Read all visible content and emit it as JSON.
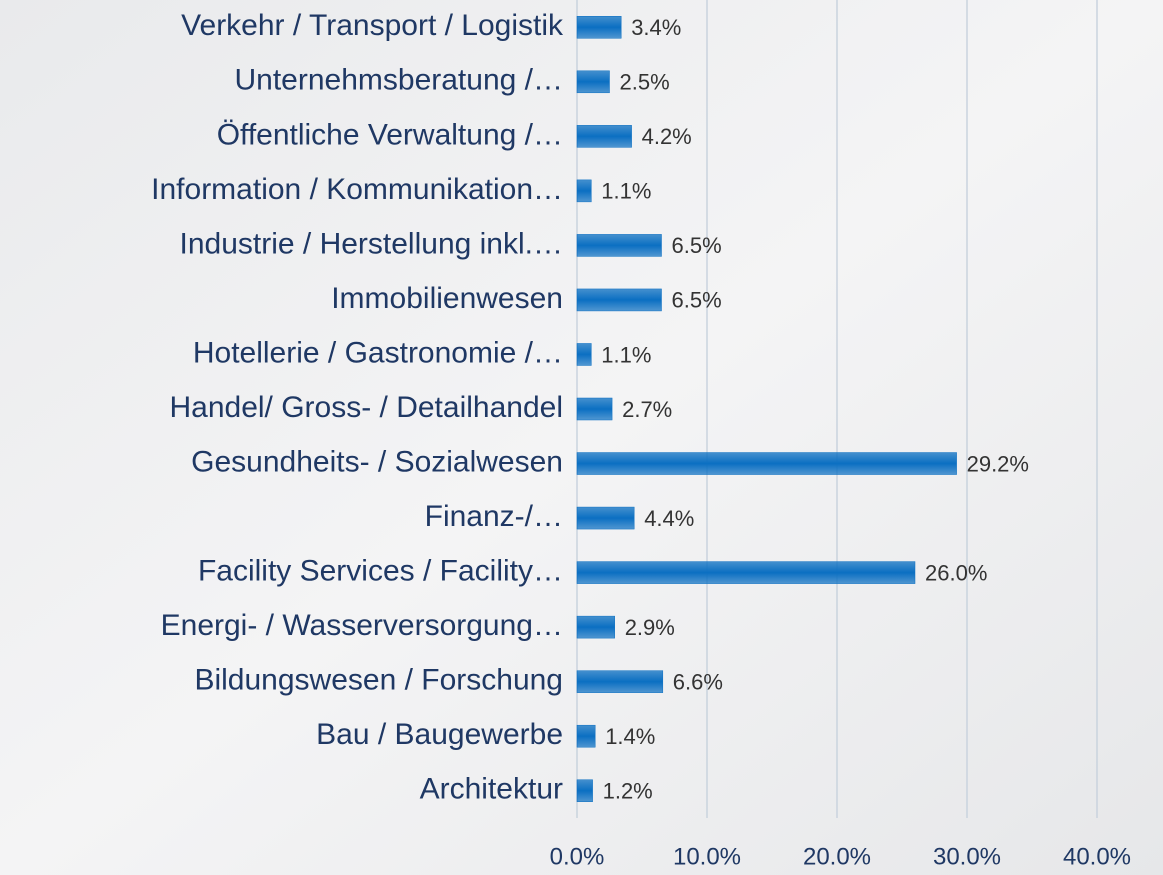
{
  "chart_data": {
    "type": "bar",
    "orientation": "horizontal",
    "categories": [
      "Verkehr / Transport / Logistik",
      "Unternehmsberatung /…",
      "Öffentliche Verwaltung /…",
      "Information / Kommunikation…",
      "Industrie / Herstellung inkl.…",
      "Immobilienwesen",
      "Hotellerie / Gastronomie /…",
      "Handel/ Gross- / Detailhandel",
      "Gesundheits- / Sozialwesen",
      "Finanz-/…",
      "Facility Services / Facility…",
      "Energi- / Wasserversorgung…",
      "Bildungswesen / Forschung",
      "Bau / Baugewerbe",
      "Architektur"
    ],
    "values": [
      3.4,
      2.5,
      4.2,
      1.1,
      6.5,
      6.5,
      1.1,
      2.7,
      29.2,
      4.4,
      26.0,
      2.9,
      6.6,
      1.4,
      1.2
    ],
    "value_labels": [
      "3.4%",
      "2.5%",
      "4.2%",
      "1.1%",
      "6.5%",
      "6.5%",
      "1.1%",
      "2.7%",
      "29.2%",
      "4.4%",
      "26.0%",
      "2.9%",
      "6.6%",
      "1.4%",
      "1.2%"
    ],
    "color": "#0b6fc2",
    "xlim": [
      0,
      40
    ],
    "xticks": [
      {
        "value": 0,
        "label": "0.0%"
      },
      {
        "value": 10,
        "label": "10.0%"
      },
      {
        "value": 20,
        "label": "20.0%"
      },
      {
        "value": 30,
        "label": "30.0%"
      },
      {
        "value": 40,
        "label": "40.0%"
      }
    ],
    "grid": true
  }
}
